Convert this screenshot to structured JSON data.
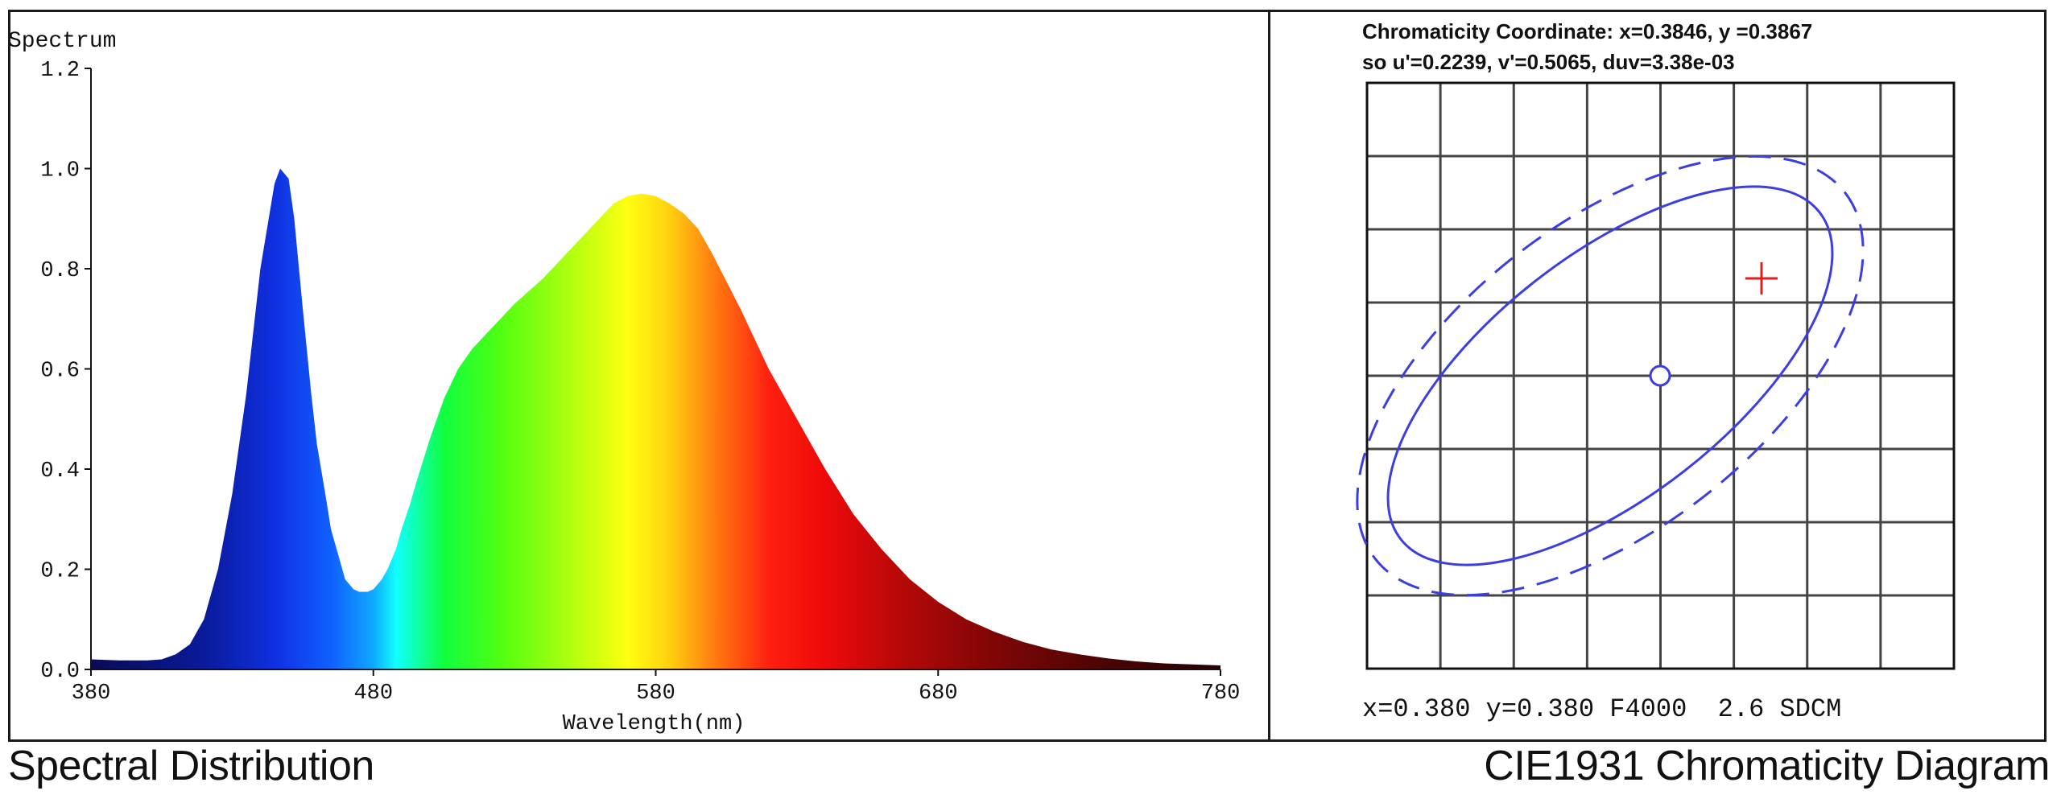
{
  "chart_data": [
    {
      "type": "area",
      "title": "Spectrum",
      "xlabel": "Wavelength(nm)",
      "ylabel": "",
      "xlim": [
        380,
        780
      ],
      "ylim": [
        0,
        1.2
      ],
      "x_ticks": [
        "380",
        "480",
        "580",
        "680",
        "780"
      ],
      "y_ticks": [
        "0.0",
        "0.2",
        "0.4",
        "0.6",
        "0.8",
        "1.0",
        "1.2"
      ],
      "fill": "wavelength-colored spectrum",
      "x": [
        380,
        390,
        400,
        405,
        410,
        415,
        420,
        425,
        430,
        435,
        440,
        445,
        447,
        450,
        452,
        455,
        458,
        460,
        463,
        465,
        468,
        470,
        473,
        475,
        478,
        480,
        483,
        485,
        488,
        490,
        493,
        495,
        500,
        505,
        510,
        515,
        520,
        525,
        530,
        540,
        550,
        560,
        565,
        570,
        575,
        580,
        585,
        590,
        595,
        600,
        610,
        620,
        630,
        640,
        650,
        660,
        670,
        680,
        690,
        700,
        710,
        720,
        730,
        740,
        750,
        760,
        770,
        780
      ],
      "values": [
        0.02,
        0.018,
        0.018,
        0.02,
        0.03,
        0.05,
        0.1,
        0.2,
        0.35,
        0.55,
        0.8,
        0.97,
        1.0,
        0.98,
        0.9,
        0.72,
        0.55,
        0.45,
        0.35,
        0.28,
        0.22,
        0.18,
        0.16,
        0.155,
        0.155,
        0.16,
        0.18,
        0.2,
        0.24,
        0.28,
        0.33,
        0.37,
        0.46,
        0.54,
        0.6,
        0.64,
        0.67,
        0.7,
        0.73,
        0.78,
        0.84,
        0.9,
        0.93,
        0.945,
        0.95,
        0.945,
        0.93,
        0.91,
        0.88,
        0.83,
        0.72,
        0.6,
        0.5,
        0.4,
        0.31,
        0.24,
        0.18,
        0.135,
        0.1,
        0.075,
        0.055,
        0.04,
        0.03,
        0.022,
        0.016,
        0.012,
        0.01,
        0.008
      ]
    },
    {
      "type": "scatter",
      "title": "CIE1931 Chromaticity Diagram",
      "header_line1": "Chromaticity Coordinate: x=0.3846, y =0.3867",
      "header_line2": "so u'=0.2239, v'=0.5065, duv=3.38e-03",
      "target_label": "x=0.380 y=0.380 F4000  2.6 SDCM",
      "grid": true,
      "grid_divisions": 8,
      "center": {
        "x": 0.38,
        "y": 0.38
      },
      "measured_point": {
        "x": 0.3846,
        "y": 0.3867
      },
      "ellipses": [
        {
          "style": "solid",
          "label": "inner"
        },
        {
          "style": "dashed",
          "label": "outer"
        }
      ],
      "colors": {
        "ellipse": "#3b3fe0",
        "measured": "#e02020",
        "grid": "#444444"
      }
    }
  ],
  "captions": {
    "left": "Spectral Distribution",
    "right": "CIE1931 Chromaticity Diagram"
  }
}
